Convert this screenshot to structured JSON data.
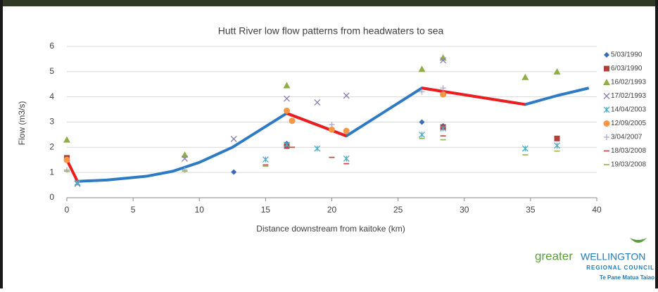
{
  "chart_data": {
    "type": "scatter",
    "title": "Hutt River low flow patterns from headwaters to sea",
    "x_label": "Distance downstream from kaitoke (km)",
    "y_label": "Flow (m3/s)",
    "xlim": [
      0,
      40
    ],
    "xticks": [
      0,
      5,
      10,
      15,
      20,
      25,
      30,
      35,
      40
    ],
    "ylim": [
      0,
      6
    ],
    "yticks": [
      0,
      1,
      2,
      3,
      4,
      5,
      6
    ],
    "grid": true,
    "legend": "right",
    "series": [
      {
        "name": "5/03/1990",
        "color": "#3a6bb5",
        "marker": "diamond",
        "x": [
          0,
          12.6,
          16.6,
          26.8,
          28.4
        ],
        "values": [
          1.55,
          1.02,
          2.15,
          3.0,
          2.85
        ]
      },
      {
        "name": "6/03/1990",
        "color": "#b33f3a",
        "marker": "square",
        "x": [
          0,
          16.6,
          28.4,
          37
        ],
        "values": [
          1.58,
          2.05,
          2.8,
          2.35
        ]
      },
      {
        "name": "16/02/1993",
        "color": "#8fae47",
        "marker": "triangle",
        "x": [
          0,
          8.9,
          16.6,
          26.8,
          28.4,
          34.6,
          37
        ],
        "values": [
          2.3,
          1.7,
          4.45,
          5.1,
          5.55,
          4.78,
          5.0
        ]
      },
      {
        "name": "17/02/1993",
        "color": "#8a7bb0",
        "marker": "cross",
        "x": [
          0.8,
          8.9,
          12.6,
          16.6,
          18.9,
          21.1,
          28.4
        ],
        "values": [
          0.55,
          1.55,
          2.33,
          3.93,
          3.78,
          4.05,
          5.45
        ]
      },
      {
        "name": "14/04/2003",
        "color": "#4bacc6",
        "marker": "star",
        "x": [
          0.8,
          15,
          16.6,
          18.9,
          21.1,
          26.8,
          28.4,
          34.6,
          37
        ],
        "values": [
          0.6,
          1.52,
          2.1,
          1.95,
          1.55,
          2.5,
          2.75,
          1.95,
          2.07
        ]
      },
      {
        "name": "12/09/2005",
        "color": "#f79646",
        "marker": "circle",
        "x": [
          0,
          16.6,
          17,
          20,
          21.1,
          28.4
        ],
        "values": [
          1.5,
          3.45,
          3.05,
          2.7,
          2.65,
          4.1
        ]
      },
      {
        "name": "3/04/2007",
        "color": "#a9a9cf",
        "marker": "plus",
        "x": [
          0,
          8.9,
          20,
          26.8,
          28.4
        ],
        "values": [
          1.1,
          1.1,
          2.9,
          4.2,
          4.35
        ]
      },
      {
        "name": "18/03/2008",
        "color": "#c0504d",
        "marker": "dash",
        "x": [
          15,
          17,
          20,
          21.1,
          28.4
        ],
        "values": [
          1.3,
          2.0,
          1.6,
          1.35,
          2.45
        ]
      },
      {
        "name": "19/03/2008",
        "color": "#9bbb59",
        "marker": "dash",
        "x": [
          0,
          8.9,
          15,
          26.8,
          28.4,
          34.6,
          37
        ],
        "values": [
          1.05,
          1.05,
          1.25,
          2.35,
          2.3,
          1.7,
          1.85
        ]
      }
    ],
    "lines": [
      {
        "color": "#2e7bc4",
        "x": [
          0.8,
          3,
          6,
          8,
          10,
          12.5,
          16.6,
          21.1,
          26.8,
          34.6,
          37,
          39.4
        ],
        "values": [
          0.65,
          0.7,
          0.85,
          1.05,
          1.4,
          2.0,
          3.35,
          2.45,
          4.35,
          3.7,
          4.05,
          4.35
        ]
      },
      {
        "color": "#ee1c1c",
        "x": [
          0,
          0.8,
          null,
          16.6,
          21.1,
          null,
          26.8,
          34.6
        ],
        "values": [
          1.5,
          0.65,
          null,
          3.35,
          2.45,
          null,
          4.35,
          3.7
        ]
      }
    ]
  },
  "logo": {
    "word1": "greater",
    "word2": "WELLINGTON",
    "line2": "REGIONAL COUNCIL",
    "line3": "Te Pane Matua Taiao"
  }
}
